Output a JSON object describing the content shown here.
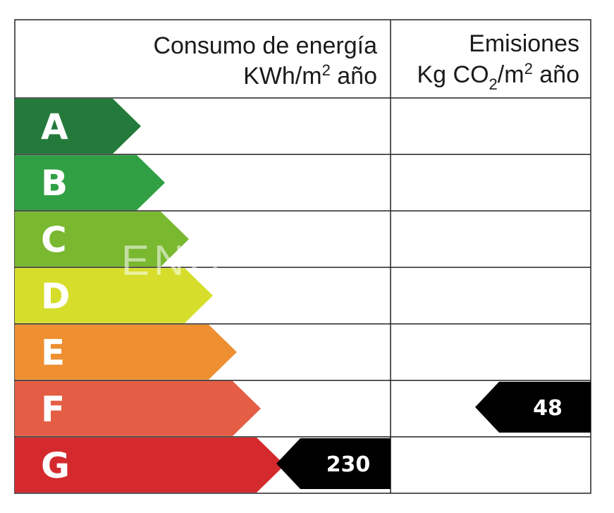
{
  "chart_data": {
    "type": "table",
    "headers": {
      "consumption": {
        "line1": "Consumo de energía",
        "line2_pre": "KWh/m",
        "line2_sup": "2",
        "line2_post": " año"
      },
      "emissions": {
        "line1": "Emisiones",
        "line2_pre": "Kg CO",
        "line2_sub": "2",
        "line2_mid": "/m",
        "line2_sup": "2",
        "line2_post": " año"
      }
    },
    "classes": [
      {
        "letter": "A",
        "color": "#237a3a"
      },
      {
        "letter": "B",
        "color": "#31a044"
      },
      {
        "letter": "C",
        "color": "#79b82f"
      },
      {
        "letter": "D",
        "color": "#d6de2b"
      },
      {
        "letter": "E",
        "color": "#ee9031"
      },
      {
        "letter": "F",
        "color": "#e45d45"
      },
      {
        "letter": "G",
        "color": "#d42a2e"
      }
    ],
    "consumption": {
      "rating": "G",
      "value": "230"
    },
    "emissions": {
      "rating": "F",
      "value": "48"
    },
    "watermark": "ENC"
  }
}
